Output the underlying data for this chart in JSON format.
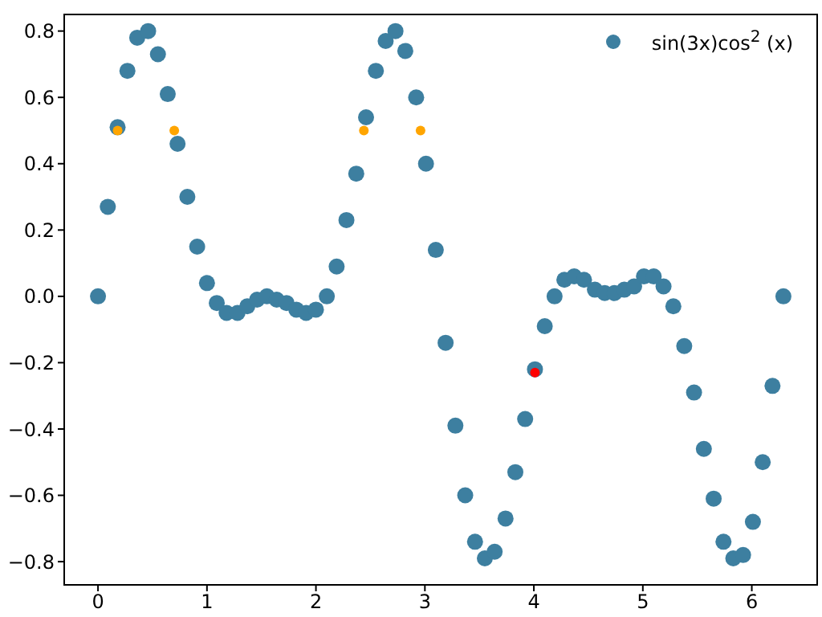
{
  "chart_data": {
    "type": "scatter",
    "xlim": [
      -0.31,
      6.6
    ],
    "ylim": [
      -0.87,
      0.85
    ],
    "xticks": [
      0,
      1,
      2,
      3,
      4,
      5,
      6
    ],
    "yticks": [
      {
        "value": -0.8,
        "label": "−0.8"
      },
      {
        "value": -0.6,
        "label": "−0.6"
      },
      {
        "value": -0.4,
        "label": "−0.4"
      },
      {
        "value": -0.2,
        "label": "−0.2"
      },
      {
        "value": 0,
        "label": "0.0"
      },
      0.2,
      0.4,
      0.6,
      0.8
    ],
    "legend": "top right",
    "marker": "circle",
    "series": [
      {
        "name": "sin(3x)cos$^{2}$ (x)",
        "color": "#3d7fa0",
        "x": [
          0,
          0.09,
          0.18,
          0.27,
          0.36,
          0.46,
          0.55,
          0.64,
          0.73,
          0.82,
          0.91,
          1.0,
          1.09,
          1.18,
          1.28,
          1.37,
          1.46,
          1.55,
          1.64,
          1.73,
          1.82,
          1.91,
          2.0,
          2.1,
          2.19,
          2.28,
          2.37,
          2.46,
          2.55,
          2.64,
          2.73,
          2.82,
          2.92,
          3.01,
          3.1,
          3.19,
          3.28,
          3.37,
          3.46,
          3.55,
          3.64,
          3.74,
          3.83,
          3.92,
          4.01,
          4.1,
          4.19,
          4.28,
          4.37,
          4.46,
          4.56,
          4.65,
          4.74,
          4.83,
          4.92,
          5.01,
          5.1,
          5.19,
          5.28,
          5.38,
          5.47,
          5.56,
          5.65,
          5.74,
          5.83,
          5.92,
          6.01,
          6.1,
          6.19,
          6.29
        ],
        "values": [
          0,
          0.27,
          0.51,
          0.68,
          0.78,
          0.8,
          0.73,
          0.61,
          0.46,
          0.3,
          0.15,
          0.04,
          -0.02,
          -0.05,
          -0.05,
          -0.03,
          -0.01,
          0,
          -0.01,
          -0.02,
          -0.04,
          -0.05,
          -0.04,
          0,
          0.09,
          0.23,
          0.37,
          0.54,
          0.68,
          0.77,
          0.8,
          0.74,
          0.6,
          0.4,
          0.14,
          -0.14,
          -0.39,
          -0.6,
          -0.74,
          -0.79,
          -0.77,
          -0.67,
          -0.53,
          -0.37,
          -0.22,
          -0.09,
          0,
          0.05,
          0.06,
          0.05,
          0.02,
          0.01,
          0.01,
          0.02,
          0.03,
          0.06,
          0.06,
          0.03,
          -0.03,
          -0.15,
          -0.29,
          -0.46,
          -0.61,
          -0.74,
          -0.79,
          -0.78,
          -0.68,
          -0.5,
          -0.27,
          0
        ]
      },
      {
        "color": "#ffa500",
        "x": [
          0.18,
          0.7,
          2.44,
          2.96
        ],
        "values": [
          0.5,
          0.5,
          0.5,
          0.5
        ]
      },
      {
        "color": "#ff0000",
        "x": [
          4.01
        ],
        "values": [
          -0.23
        ]
      }
    ]
  }
}
